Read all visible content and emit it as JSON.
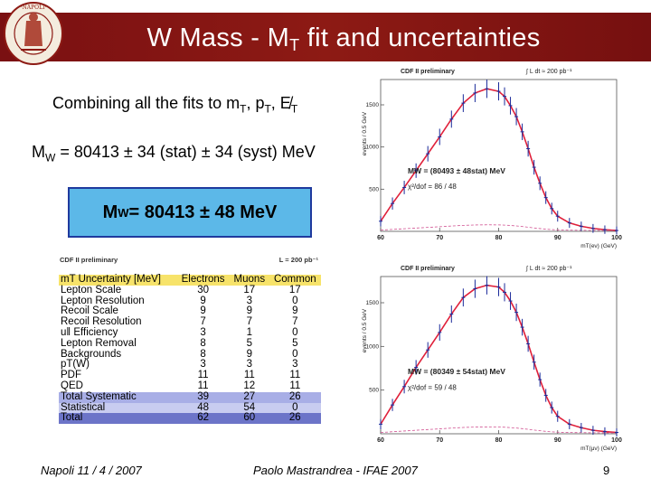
{
  "title": {
    "prefix": "W Mass - M",
    "sub": "T",
    "suffix": " fit and uncertainties"
  },
  "combine_line": {
    "text": "Combining all the fits to m",
    "sub1": "T",
    "sep1": ", p",
    "sub2": "T",
    "sep2": ", E̸",
    "sub3": "T"
  },
  "mw_line": {
    "prefix": "M",
    "sub": "W",
    "text": " = 80413 ± 34 (stat) ± 34 (syst) MeV"
  },
  "result_box": {
    "prefix": "M",
    "sub": "W",
    "text": " = 80413 ± 48 MeV"
  },
  "uncertainty_table": {
    "caption_left": "CDF II preliminary",
    "caption_right": "L = 200 pb⁻¹",
    "columns": [
      "mT Uncertainty [MeV]",
      "Electrons",
      "Muons",
      "Common"
    ],
    "rows": [
      [
        "Lepton Scale",
        "30",
        "17",
        "17"
      ],
      [
        "Lepton Resolution",
        "9",
        "3",
        "0"
      ],
      [
        "Recoil Scale",
        "9",
        "9",
        "9"
      ],
      [
        "Recoil Resolution",
        "7",
        "7",
        "7"
      ],
      [
        "uǁ Efficiency",
        "3",
        "1",
        "0"
      ],
      [
        "Lepton Removal",
        "8",
        "5",
        "5"
      ],
      [
        "Backgrounds",
        "8",
        "9",
        "0"
      ],
      [
        "pT(W)",
        "3",
        "3",
        "3"
      ],
      [
        "PDF",
        "11",
        "11",
        "11"
      ],
      [
        "QED",
        "11",
        "12",
        "11"
      ],
      [
        "Total Systematic",
        "39",
        "27",
        "26"
      ],
      [
        "Statistical",
        "48",
        "54",
        "0"
      ],
      [
        "Total",
        "62",
        "60",
        "26"
      ]
    ]
  },
  "chart_data": [
    {
      "type": "scatter",
      "title": "CDF II preliminary",
      "lumi": "∫ L dt ≈ 200 pb⁻¹",
      "xlabel": "mT(eν) (GeV)",
      "ylabel": "events / 0.5 GeV",
      "xlim": [
        60,
        100
      ],
      "ylim": [
        0,
        1800
      ],
      "xticks": [
        60,
        70,
        80,
        90,
        100
      ],
      "yticks": [
        500,
        1000,
        1500
      ],
      "fit_label": "MW = (80493 ± 48stat) MeV",
      "chi2_label": "χ²/dof = 86 / 48",
      "series": [
        {
          "x": [
            60,
            62,
            64,
            66,
            68,
            70,
            72,
            74,
            76,
            78,
            80,
            81,
            82,
            83,
            84,
            85,
            86,
            87,
            88,
            89,
            90,
            92,
            94,
            96,
            98,
            100
          ],
          "y": [
            120,
            330,
            520,
            720,
            920,
            1120,
            1330,
            1520,
            1640,
            1690,
            1660,
            1600,
            1490,
            1360,
            1180,
            980,
            760,
            570,
            400,
            270,
            180,
            100,
            60,
            35,
            20,
            10
          ]
        }
      ]
    },
    {
      "type": "scatter",
      "title": "CDF II preliminary",
      "lumi": "∫ L dt ≈ 200 pb⁻¹",
      "xlabel": "mT(μν) (GeV)",
      "ylabel": "events / 0.5 GeV",
      "xlim": [
        60,
        100
      ],
      "ylim": [
        0,
        1800
      ],
      "xticks": [
        60,
        70,
        80,
        90,
        100
      ],
      "yticks": [
        500,
        1000,
        1500
      ],
      "fit_label": "MW = (80349 ± 54stat) MeV",
      "chi2_label": "χ²/dof = 59 / 48",
      "series": [
        {
          "x": [
            60,
            62,
            64,
            66,
            68,
            70,
            72,
            74,
            76,
            78,
            80,
            81,
            82,
            83,
            84,
            85,
            86,
            87,
            88,
            89,
            90,
            92,
            94,
            96,
            98,
            100
          ],
          "y": [
            110,
            330,
            540,
            760,
            960,
            1160,
            1370,
            1560,
            1660,
            1700,
            1680,
            1620,
            1520,
            1390,
            1220,
            1030,
            820,
            620,
            440,
            300,
            200,
            110,
            70,
            40,
            25,
            15
          ]
        }
      ]
    }
  ],
  "footer": {
    "left": "Napoli 11 / 4 / 2007",
    "middle": "Paolo Mastrandrea - IFAE 2007",
    "right": "9"
  }
}
